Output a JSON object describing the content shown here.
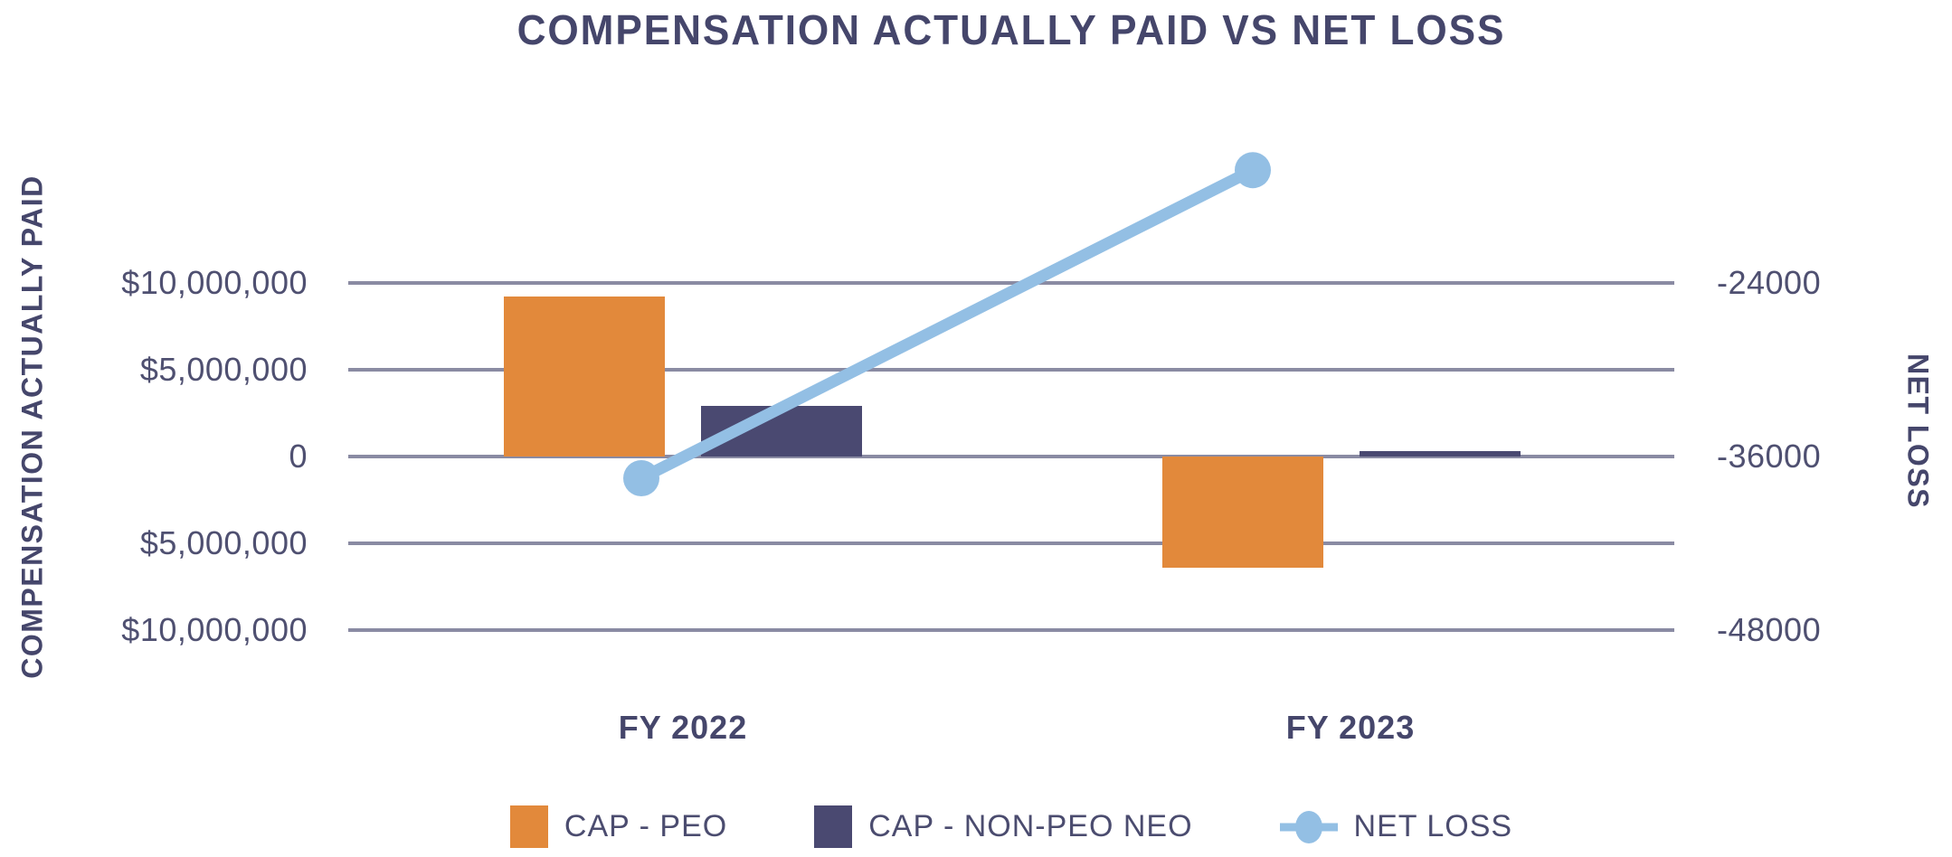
{
  "title": "COMPENSATION ACTUALLY PAID VS NET LOSS",
  "chart_data": {
    "type": "bar",
    "subtype": "combo-bar-line-dual-axis",
    "categories": [
      "FY 2022",
      "FY 2023"
    ],
    "series": [
      {
        "name": "CAP - PEO",
        "type": "bar",
        "axis": "left",
        "color": "#e2893b",
        "values": [
          9200000,
          -6400000
        ]
      },
      {
        "name": "CAP - NON-PEO NEO",
        "type": "bar",
        "axis": "left",
        "color": "#4a4971",
        "values": [
          2900000,
          300000
        ]
      },
      {
        "name": "NET LOSS",
        "type": "line",
        "axis": "right",
        "color": "#93bfe4",
        "values": [
          -37500,
          -16200
        ]
      }
    ],
    "left_axis": {
      "title": "COMPENSATION ACTUALLY PAID",
      "tick_labels": [
        "$10,000,000",
        "$5,000,000",
        "0",
        "$5,000,000",
        "$10,000,000"
      ],
      "tick_values": [
        10000000,
        5000000,
        0,
        -5000000,
        -10000000
      ]
    },
    "right_axis": {
      "title": "NET LOSS",
      "tick_labels": [
        "-24000",
        "-36000",
        "-48000"
      ],
      "tick_values": [
        -24000,
        -36000,
        -48000
      ]
    },
    "grid": true,
    "legend_position": "bottom",
    "legend": [
      "CAP - PEO",
      "CAP - NON-PEO NEO",
      "NET LOSS"
    ]
  },
  "colors": {
    "background": "#ffffff",
    "title_text": "#45466b",
    "axis_text": "#4f5071",
    "gridline": "#8a8ba3",
    "cap_peo": "#e2893b",
    "cap_non_peo_neo": "#4a4971",
    "net_loss": "#93bfe4"
  }
}
